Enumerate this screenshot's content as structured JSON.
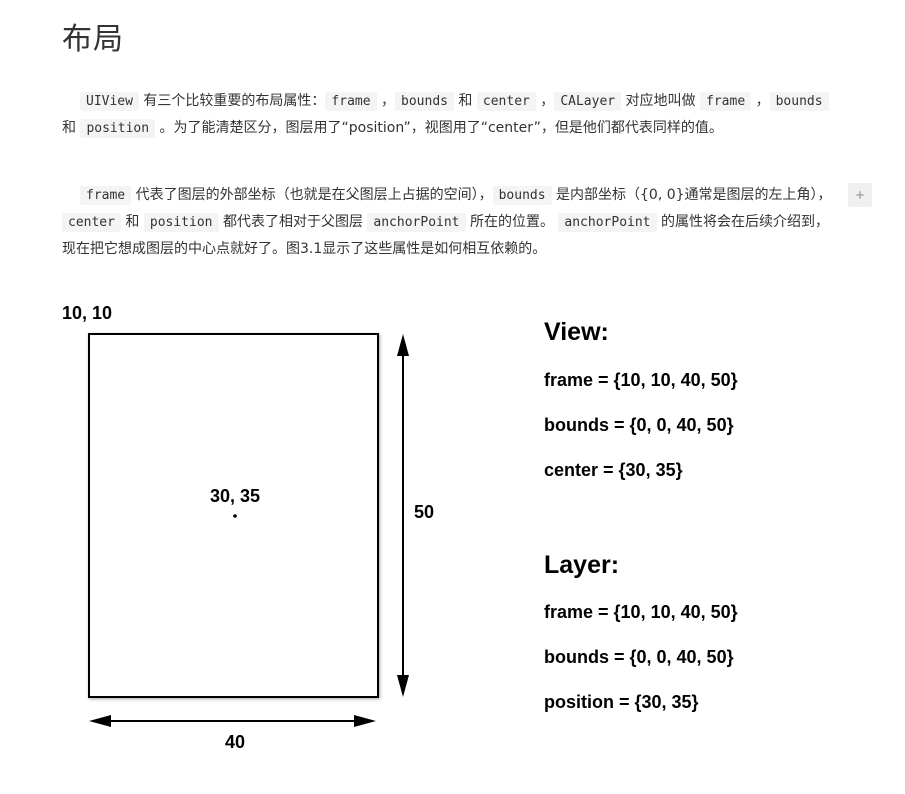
{
  "title": "布局",
  "plus_label": "+",
  "p1": {
    "code_uiview": "UIView",
    "t1": " 有三个比较重要的布局属性：",
    "code_frame": "frame",
    "t2": " ，",
    "code_bounds": "bounds",
    "t3": " 和 ",
    "code_center": "center",
    "t4": " ，",
    "code_calayer": "CALayer",
    "t5": " 对应地叫做 ",
    "code_frame2": "frame",
    "t6": " ，",
    "code_bounds2": "bounds",
    "t7": " 和 ",
    "code_position": "position",
    "t8": " 。为了能清楚区分，图层用了“position”，视图用了“center”，但是他们都代表同样的值。"
  },
  "p2": {
    "code_frame": "frame",
    "t1": " 代表了图层的外部坐标（也就是在父图层上占据的空间），",
    "code_bounds": "bounds",
    "t2": " 是内部坐标（{0, 0}通常是图层的左上角），",
    "code_center": "center",
    "t3": " 和 ",
    "code_position": "position",
    "t4": " 都代表了相对于父图层 ",
    "code_anchor": "anchorPoint",
    "t5": " 所在的位置。 ",
    "code_anchor2": "anchorPoint",
    "t6": " 的属性将会在后续介绍到，现在把它想成图层的中心点就好了。图3.1显示了这些属性是如何相互依赖的。"
  },
  "figure": {
    "origin_label": "10, 10",
    "center_label": "30, 35",
    "height_label": "50",
    "width_label": "40",
    "view_title": "View:",
    "view_frame": "frame = {10, 10, 40, 50}",
    "view_bounds": "bounds = {0, 0, 40, 50}",
    "view_center": "center = {30, 35}",
    "layer_title": "Layer:",
    "layer_frame": "frame = {10, 10, 40, 50}",
    "layer_bounds": "bounds = {0, 0, 40, 50}",
    "layer_position": "position = {30, 35}"
  }
}
